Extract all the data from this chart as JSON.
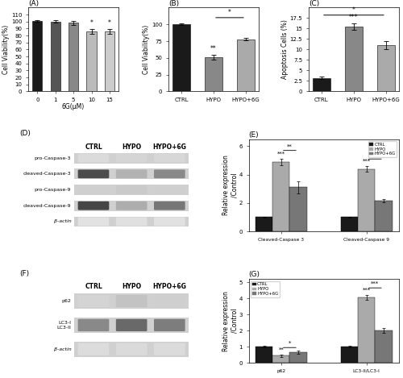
{
  "panel_A": {
    "categories": [
      "0",
      "1",
      "5",
      "10",
      "15"
    ],
    "values": [
      101,
      100,
      98,
      86,
      86
    ],
    "errors": [
      1.5,
      2.0,
      2.5,
      3.5,
      3.5
    ],
    "colors": [
      "#1a1a1a",
      "#555555",
      "#888888",
      "#bbbbbb",
      "#cccccc"
    ],
    "xlabel": "6G(μM)",
    "ylabel": "Cell Viability(%)",
    "ylim": [
      0,
      120
    ],
    "yticks": [
      0,
      10,
      20,
      30,
      40,
      50,
      60,
      70,
      80,
      90,
      100,
      110
    ],
    "sig_indices": [
      3,
      4
    ],
    "sig_texts": [
      "*",
      "*"
    ],
    "title": "(A)"
  },
  "panel_B": {
    "categories": [
      "CTRL",
      "HYPO",
      "HYPO+6G"
    ],
    "values": [
      100,
      51,
      78
    ],
    "errors": [
      1.5,
      4.0,
      2.0
    ],
    "colors": [
      "#1a1a1a",
      "#888888",
      "#aaaaaa"
    ],
    "ylabel": "Cell Viability(%)",
    "ylim": [
      0,
      125
    ],
    "yticks": [
      0,
      25,
      50,
      75,
      100
    ],
    "title": "(B)"
  },
  "panel_C": {
    "categories": [
      "CTRL",
      "HYPO",
      "HYPO+6G"
    ],
    "values": [
      3.2,
      15.5,
      11.0
    ],
    "errors": [
      0.3,
      0.8,
      1.0
    ],
    "colors": [
      "#1a1a1a",
      "#888888",
      "#aaaaaa"
    ],
    "ylabel": "Apoptosis Cells (%)",
    "ylim": [
      0,
      20
    ],
    "yticks": [
      0.0,
      2.5,
      5.0,
      7.5,
      10.0,
      12.5,
      15.0,
      17.5
    ],
    "title": "(C)"
  },
  "panel_E": {
    "groups": [
      "Cleaved-Caspase 3",
      "Cleaved-Caspase 9"
    ],
    "series": {
      "CTRL": [
        1.0,
        1.0
      ],
      "HYPO": [
        4.9,
        4.4
      ],
      "HYPO+6G": [
        3.1,
        2.15
      ]
    },
    "errors": {
      "CTRL": [
        0.05,
        0.05
      ],
      "HYPO": [
        0.22,
        0.18
      ],
      "HYPO+6G": [
        0.45,
        0.1
      ]
    },
    "colors": {
      "CTRL": "#1a1a1a",
      "HYPO": "#aaaaaa",
      "HYPO+6G": "#777777"
    },
    "ylabel": "Relative expression\n/Control",
    "ylim": [
      0,
      6.5
    ],
    "yticks": [
      0,
      2,
      4,
      6
    ],
    "title": "(E)"
  },
  "panel_G": {
    "groups": [
      "p62",
      "LC3-II/LC3-I"
    ],
    "series": {
      "CTRL": [
        1.0,
        1.0
      ],
      "HYPO": [
        0.45,
        4.05
      ],
      "HYPO+6G": [
        0.65,
        2.0
      ]
    },
    "errors": {
      "CTRL": [
        0.05,
        0.05
      ],
      "HYPO": [
        0.08,
        0.15
      ],
      "HYPO+6G": [
        0.1,
        0.15
      ]
    },
    "colors": {
      "CTRL": "#1a1a1a",
      "HYPO": "#aaaaaa",
      "HYPO+6G": "#777777"
    },
    "ylabel": "Relative expression\n/Control",
    "ylim": [
      0,
      5.2
    ],
    "yticks": [
      0,
      1,
      2,
      3,
      4,
      5
    ],
    "title": "(G)"
  },
  "western_D": {
    "title": "(D)",
    "labels": [
      "CTRL",
      "HYPO",
      "HYPO+6G"
    ],
    "bands": [
      "pro-Caspase-3",
      "cleaved-Caspase-3",
      "pro-Caspase-9",
      "cleaved-Caspase-9",
      "β-actin"
    ],
    "band_intensities": [
      [
        [
          0.85,
          0.88,
          0.85
        ],
        [
          0.82,
          0.85,
          0.83
        ],
        [
          0.83,
          0.86,
          0.84
        ]
      ],
      [
        [
          0.3,
          0.28,
          0.3
        ],
        [
          0.72,
          0.68,
          0.7
        ],
        [
          0.55,
          0.52,
          0.54
        ]
      ],
      [
        [
          0.8,
          0.83,
          0.81
        ],
        [
          0.78,
          0.81,
          0.79
        ],
        [
          0.8,
          0.82,
          0.81
        ]
      ],
      [
        [
          0.28,
          0.26,
          0.28
        ],
        [
          0.7,
          0.66,
          0.68
        ],
        [
          0.48,
          0.45,
          0.47
        ]
      ],
      [
        [
          0.88,
          0.9,
          0.88
        ],
        [
          0.87,
          0.89,
          0.88
        ],
        [
          0.88,
          0.89,
          0.88
        ]
      ]
    ]
  },
  "western_F": {
    "title": "(F)",
    "labels": [
      "CTRL",
      "HYPO",
      "HYPO+6G"
    ],
    "bands": [
      "p62",
      "LC3-I\nLC3-II",
      "β-actin"
    ],
    "band_intensities": [
      [
        [
          0.82,
          0.85,
          0.82
        ],
        [
          0.75,
          0.78,
          0.76
        ],
        [
          0.8,
          0.83,
          0.81
        ]
      ],
      [
        [
          0.55,
          0.52,
          0.54
        ],
        [
          0.42,
          0.4,
          0.41
        ],
        [
          0.5,
          0.48,
          0.49
        ]
      ],
      [
        [
          0.85,
          0.88,
          0.86
        ],
        [
          0.84,
          0.87,
          0.85
        ],
        [
          0.85,
          0.87,
          0.86
        ]
      ]
    ]
  },
  "font_size_label": 5.5,
  "font_size_tick": 5.0,
  "font_size_title": 6.5,
  "bar_width": 0.55,
  "grouped_bar_width": 0.2
}
